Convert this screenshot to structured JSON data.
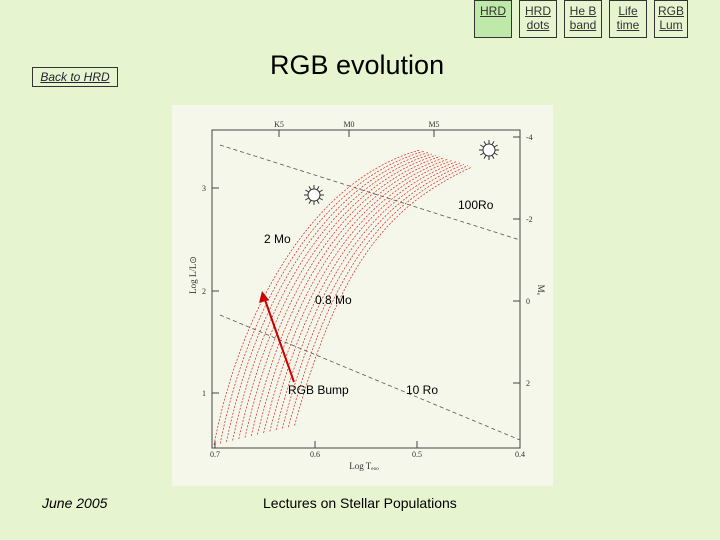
{
  "nav": [
    {
      "label_1": "HRD",
      "label_2": ""
    },
    {
      "label_1": "HRD",
      "label_2": "dots"
    },
    {
      "label_1": "He B",
      "label_2": "band"
    },
    {
      "label_1": "Life",
      "label_2": "time"
    },
    {
      "label_1": "RGB",
      "label_2": "Lum"
    }
  ],
  "back_link": "Back to HRD",
  "title": "RGB evolution",
  "figure": {
    "top_spectral": [
      "K5",
      "M0",
      "M5"
    ],
    "x_ticks": [
      "0.7",
      "0.6",
      "0.5",
      "0.4"
    ],
    "y_ticks": [
      "1",
      "2",
      "3"
    ],
    "right_ticks": [
      "-4",
      "-2",
      "0",
      "2"
    ],
    "ylabel": "Log L/L⊙",
    "xlabel": "Log Tₑₒₒ",
    "right_label": "Mᵥ"
  },
  "annotations": {
    "radius_100": "100Ro",
    "mass_2": "2 Mo",
    "mass_08": "0.8 Mo",
    "rgb_bump": "RGB Bump",
    "radius_10": "10 Ro"
  },
  "footer": {
    "date": "June 2005",
    "course": "Lectures on Stellar Populations"
  },
  "colors": {
    "background": "#e6f5d0",
    "tracks": "#e02020",
    "arrow": "#cc0000"
  }
}
